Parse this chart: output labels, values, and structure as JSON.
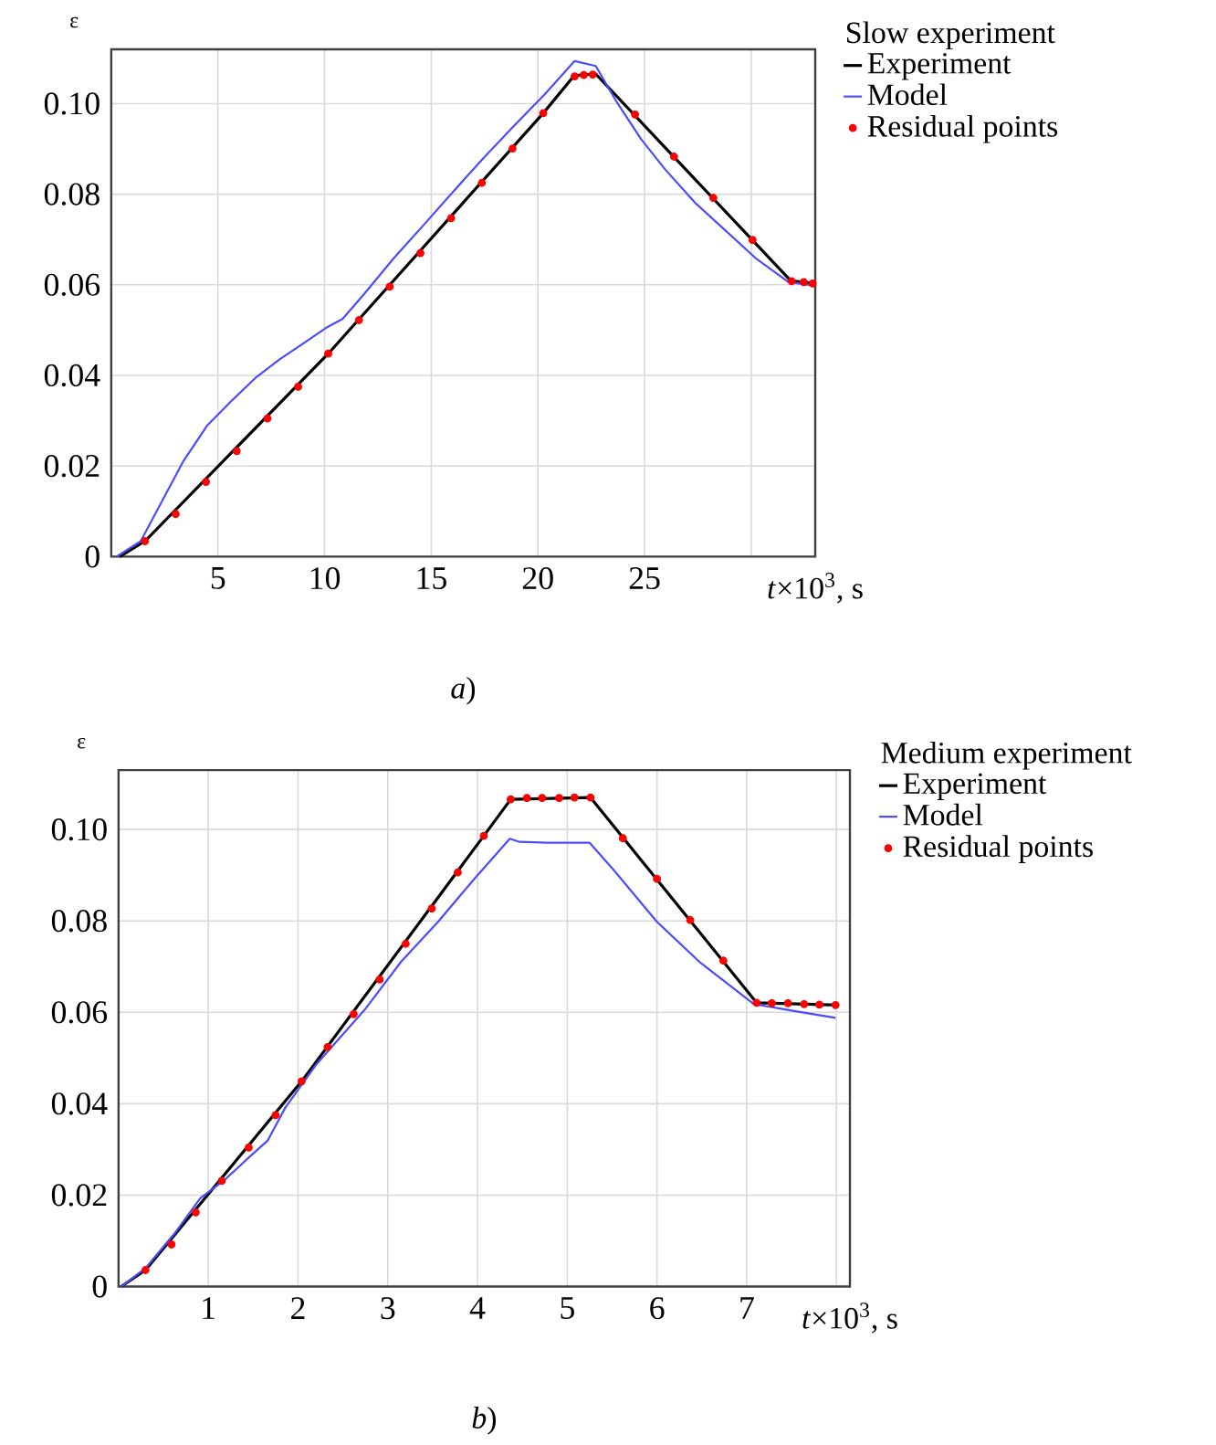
{
  "chart_data": [
    {
      "type": "line",
      "xlabel": "*t*×10$^{3}$, s",
      "ylabel": "ε",
      "legend_title": "Slow experiment",
      "legend": "top right",
      "grid": true,
      "xlim": [
        0,
        33
      ],
      "ylim": [
        0,
        0.112
      ],
      "xticks": [
        5,
        10,
        15,
        20,
        25,
        {
          "value": 30,
          "label": null
        }
      ],
      "yticks": [
        0,
        0.02,
        0.04,
        0.06,
        0.08,
        {
          "value": 0.1,
          "label": "0.10"
        }
      ],
      "annotations": [
        "*a*)"
      ],
      "series": [
        {
          "name": "Experiment",
          "type": "line",
          "color": "#000000",
          "x": [
            0.4,
            1.58,
            10.17,
            20.25,
            21.7,
            22.7,
            31.85,
            33
          ],
          "values": [
            0,
            0.0034,
            0.0448,
            0.0979,
            0.1062,
            0.1066,
            0.0609,
            0.0603
          ]
        },
        {
          "name": "Model",
          "type": "line",
          "color": "#4b4bff",
          "x": [
            0.25,
            1.38,
            3.36,
            4.49,
            5.62,
            6.75,
            7.88,
            9.01,
            10.14,
            10.85,
            11.84,
            13.25,
            14.66,
            16.07,
            17.49,
            18.9,
            20.31,
            21.72,
            22.71,
            23.7,
            24.83,
            25.96,
            27.37,
            28.79,
            30.2,
            31.75,
            32.88
          ],
          "values": [
            0,
            0.0034,
            0.0209,
            0.0289,
            0.0343,
            0.0394,
            0.0435,
            0.0471,
            0.0507,
            0.0525,
            0.0579,
            0.0659,
            0.0733,
            0.0808,
            0.0882,
            0.0952,
            0.102,
            0.1094,
            0.1083,
            0.1003,
            0.0922,
            0.0855,
            0.0781,
            0.072,
            0.0659,
            0.0606,
            0.0599
          ]
        },
        {
          "name": "Residual points",
          "type": "scatter",
          "marker": "circle",
          "color": "#ff0000",
          "x": [
            1.58,
            3.02,
            4.44,
            5.88,
            7.32,
            8.76,
            10.17,
            11.61,
            13.05,
            14.49,
            15.93,
            17.37,
            18.81,
            20.25,
            21.72,
            22.15,
            22.57,
            24.55,
            26.38,
            28.22,
            30.06,
            31.89,
            32.46,
            32.88
          ],
          "values": [
            0.0034,
            0.0094,
            0.0165,
            0.0233,
            0.0305,
            0.0375,
            0.0448,
            0.0522,
            0.0596,
            0.067,
            0.0747,
            0.0825,
            0.0901,
            0.0979,
            0.106,
            0.1063,
            0.1064,
            0.0976,
            0.0883,
            0.0792,
            0.0699,
            0.0608,
            0.0606,
            0.0603
          ]
        }
      ]
    },
    {
      "type": "line",
      "xlabel": "*t*×10$^{3}$, s",
      "ylabel": "ε",
      "legend_title": "Medium experiment",
      "legend": "top right",
      "grid": true,
      "xlim": [
        0,
        8.15
      ],
      "ylim": [
        0,
        0.113
      ],
      "xticks": [
        1,
        2,
        3,
        4,
        5,
        6,
        7,
        {
          "value": 8,
          "label": null
        }
      ],
      "yticks": [
        0,
        0.02,
        0.04,
        0.06,
        0.08,
        {
          "value": 0.1,
          "label": "0.10"
        }
      ],
      "annotations": [
        "*b*)"
      ],
      "series": [
        {
          "name": "Experiment",
          "type": "line",
          "color": "#000000",
          "x": [
            0.03,
            0.3,
            2.04,
            4.07,
            4.37,
            5.26,
            7.11,
            8.02
          ],
          "values": [
            0,
            0.0036,
            0.0449,
            0.0986,
            0.1066,
            0.107,
            0.0621,
            0.0616
          ]
        },
        {
          "name": "Model",
          "type": "line",
          "color": "#4b4bff",
          "x": [
            0.03,
            0.3,
            0.64,
            0.91,
            1.18,
            1.45,
            1.66,
            1.86,
            2.2,
            2.74,
            3.15,
            3.56,
            3.96,
            4.36,
            4.47,
            4.78,
            5.25,
            5.52,
            6.0,
            6.47,
            7.08,
            7.56,
            7.99
          ],
          "values": [
            0,
            0.004,
            0.012,
            0.0193,
            0.0233,
            0.0282,
            0.0319,
            0.0392,
            0.0485,
            0.0605,
            0.0711,
            0.0798,
            0.0891,
            0.098,
            0.0973,
            0.0971,
            0.0971,
            0.0911,
            0.0798,
            0.0711,
            0.0618,
            0.0602,
            0.0588
          ]
        },
        {
          "name": "Residual points",
          "type": "scatter",
          "marker": "circle",
          "color": "#ff0000",
          "x": [
            0.3,
            0.59,
            0.86,
            1.15,
            1.45,
            1.75,
            2.04,
            2.33,
            2.62,
            2.91,
            3.2,
            3.49,
            3.78,
            4.07,
            4.37,
            4.55,
            4.72,
            4.91,
            5.08,
            5.26,
            5.62,
            6.0,
            6.37,
            6.74,
            7.11,
            7.28,
            7.46,
            7.64,
            7.81,
            7.99
          ],
          "values": [
            0.0036,
            0.0092,
            0.0162,
            0.0231,
            0.0304,
            0.0375,
            0.0449,
            0.0524,
            0.0596,
            0.0672,
            0.075,
            0.0827,
            0.0906,
            0.0986,
            0.1066,
            0.1069,
            0.1069,
            0.1069,
            0.107,
            0.107,
            0.0981,
            0.0892,
            0.0802,
            0.0713,
            0.0621,
            0.062,
            0.062,
            0.0618,
            0.0617,
            0.0616
          ]
        }
      ]
    }
  ]
}
